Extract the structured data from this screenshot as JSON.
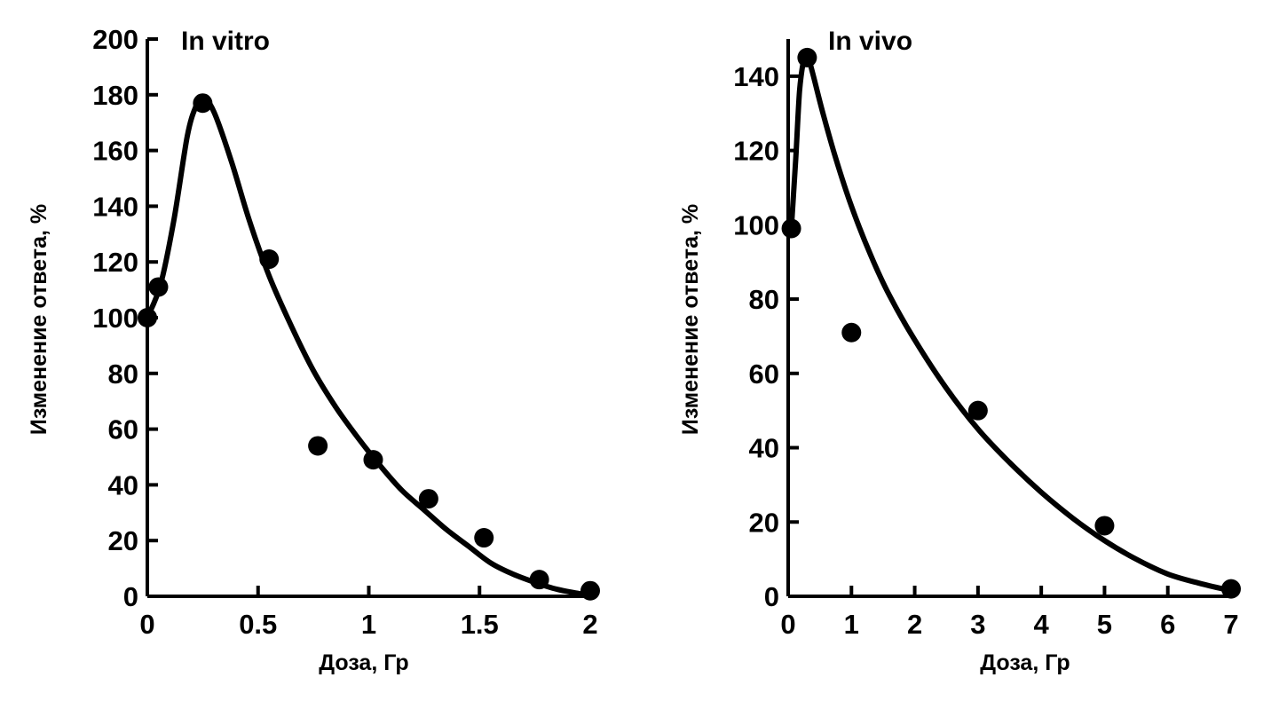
{
  "chart_data": [
    {
      "type": "scatter",
      "title": "In vitro",
      "xlabel": "Доза, Гр",
      "ylabel": "Изменение ответа, %",
      "xlim": [
        0,
        2
      ],
      "ylim": [
        0,
        200
      ],
      "xticks": [
        0,
        0.5,
        1,
        1.5,
        2
      ],
      "xtick_labels": [
        "0",
        "0.5",
        "1",
        "1.5",
        "2"
      ],
      "yticks": [
        0,
        20,
        40,
        60,
        80,
        100,
        120,
        140,
        160,
        180,
        200
      ],
      "ytick_labels": [
        "0",
        "20",
        "40",
        "60",
        "80",
        "100",
        "120",
        "140",
        "160",
        "180",
        "200"
      ],
      "grid": false,
      "points": {
        "x": [
          0.0,
          0.05,
          0.25,
          0.55,
          0.77,
          1.02,
          1.27,
          1.52,
          1.77,
          2.0
        ],
        "y": [
          100,
          111,
          177,
          121,
          54,
          49,
          35,
          21,
          6,
          2
        ]
      },
      "curve": {
        "x": [
          0,
          0.06,
          0.12,
          0.18,
          0.22,
          0.25,
          0.3,
          0.38,
          0.46,
          0.55,
          0.65,
          0.75,
          0.85,
          0.95,
          1.05,
          1.15,
          1.25,
          1.35,
          1.45,
          1.55,
          1.65,
          1.75,
          1.85,
          1.95,
          2.0
        ],
        "y": [
          100,
          112,
          135,
          165,
          176,
          179,
          174,
          156,
          135,
          115,
          97,
          81,
          68,
          57,
          47,
          38,
          31,
          24,
          18,
          12,
          8,
          5,
          2.5,
          1,
          0.5
        ]
      }
    },
    {
      "type": "scatter",
      "title": "In vivo",
      "xlabel": "Доза, Гр",
      "ylabel": "Изменение ответа, %",
      "xlim": [
        0,
        7
      ],
      "ylim": [
        0,
        150
      ],
      "xticks": [
        0,
        1,
        2,
        3,
        4,
        5,
        6,
        7
      ],
      "xtick_labels": [
        "0",
        "1",
        "2",
        "3",
        "4",
        "5",
        "6",
        "7"
      ],
      "yticks": [
        0,
        20,
        40,
        60,
        80,
        100,
        120,
        140
      ],
      "ytick_labels": [
        "0",
        "20",
        "40",
        "60",
        "80",
        "100",
        "120",
        "140"
      ],
      "grid": false,
      "points": {
        "x": [
          0.05,
          0.3,
          1.0,
          3.0,
          5.0,
          7.0
        ],
        "y": [
          99,
          145,
          71,
          50,
          19,
          2
        ]
      },
      "curve": {
        "x": [
          0.05,
          0.12,
          0.18,
          0.24,
          0.28,
          0.32,
          0.4,
          0.55,
          0.75,
          1.0,
          1.3,
          1.6,
          2.0,
          2.5,
          3.0,
          3.5,
          4.0,
          4.5,
          5.0,
          5.5,
          6.0,
          6.5,
          7.0
        ],
        "y": [
          99,
          118,
          136,
          144,
          146,
          145,
          140,
          130,
          118,
          105,
          92,
          81,
          69,
          56,
          45,
          36,
          28,
          21,
          15,
          10,
          6,
          3.5,
          1.5
        ]
      }
    }
  ]
}
